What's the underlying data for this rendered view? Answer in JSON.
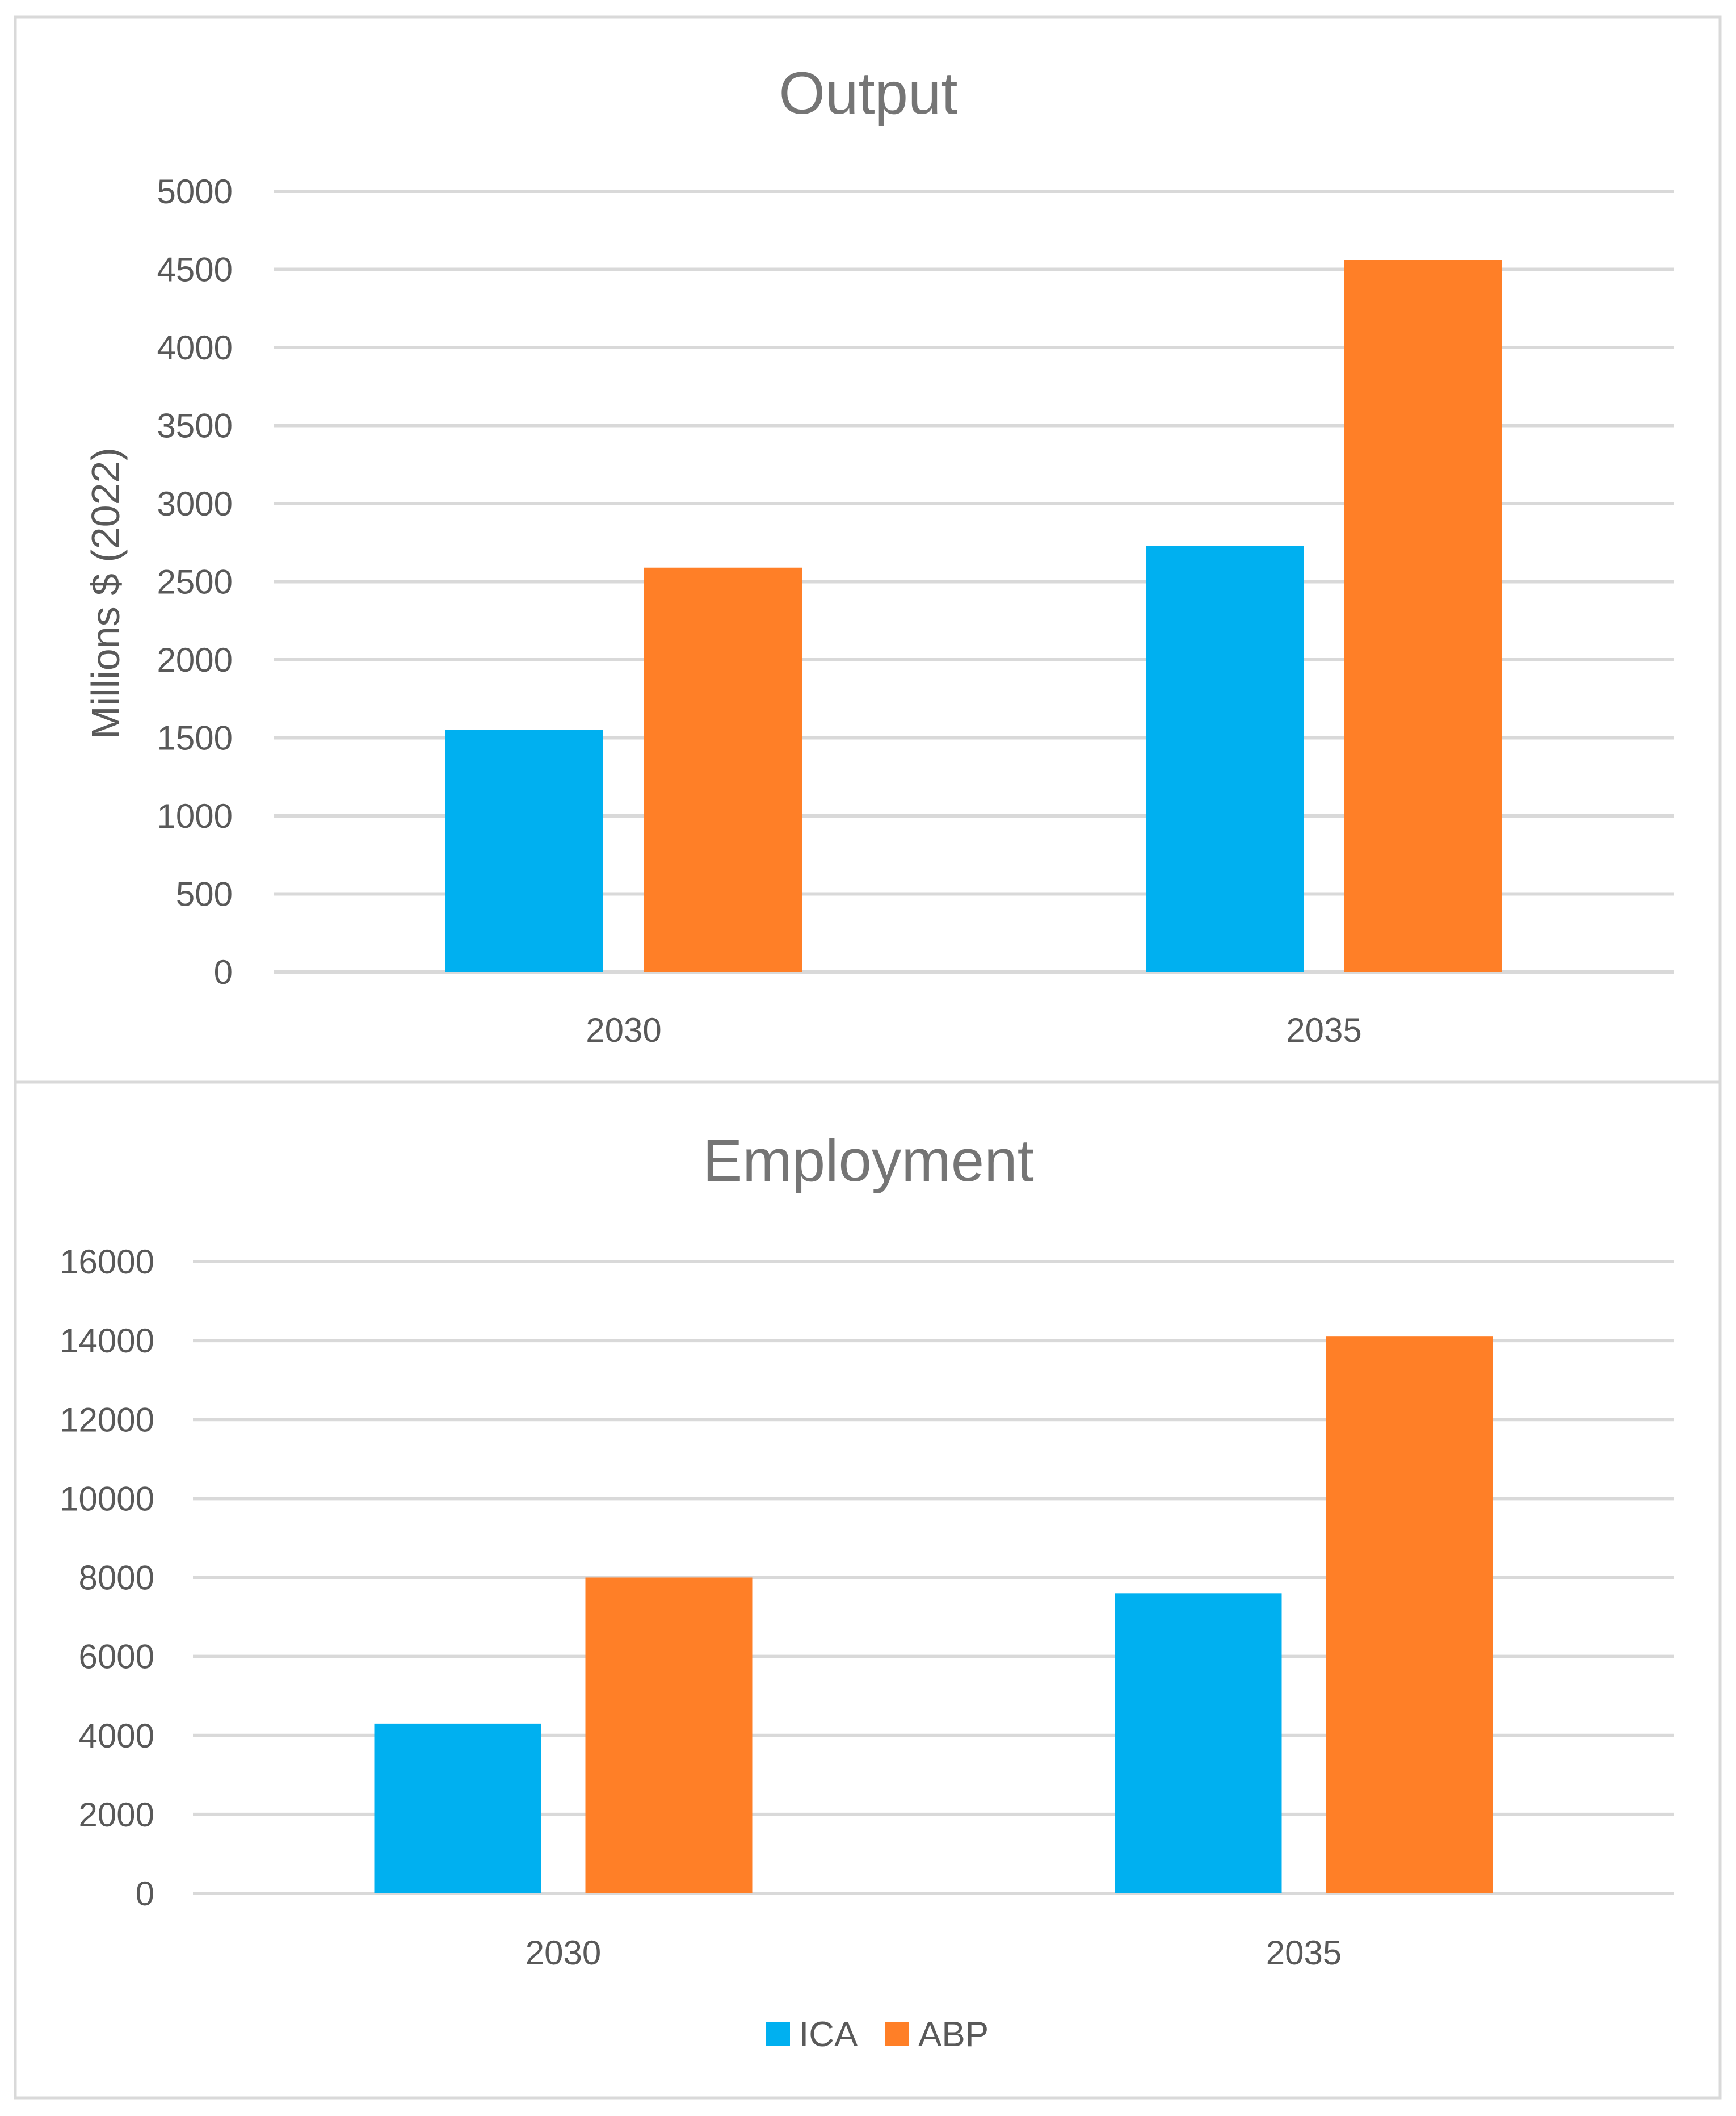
{
  "chart_data": [
    {
      "type": "bar",
      "title": "Output",
      "ylabel": "Millions $ (2022)",
      "xlabel": "",
      "categories": [
        "2030",
        "2035"
      ],
      "series": [
        {
          "name": "ICA",
          "color": "#00b0f0",
          "values": [
            1550,
            2730
          ]
        },
        {
          "name": "ABP",
          "color": "#ff7f27",
          "values": [
            2590,
            4560
          ]
        }
      ],
      "ylim": [
        0,
        5000
      ],
      "yticks": [
        "0",
        "500",
        "1000",
        "1500",
        "2000",
        "2500",
        "3000",
        "3500",
        "4000",
        "4500",
        "5000"
      ],
      "grid": true,
      "legend": "none"
    },
    {
      "type": "bar",
      "title": "Employment",
      "ylabel": "",
      "xlabel": "",
      "categories": [
        "2030",
        "2035"
      ],
      "series": [
        {
          "name": "ICA",
          "color": "#00b0f0",
          "values": [
            4300,
            7600
          ]
        },
        {
          "name": "ABP",
          "color": "#ff7f27",
          "values": [
            8000,
            14100
          ]
        }
      ],
      "ylim": [
        0,
        16000
      ],
      "yticks": [
        "0",
        "2000",
        "4000",
        "6000",
        "8000",
        "10000",
        "12000",
        "14000",
        "16000"
      ],
      "grid": true,
      "legend": "bottom"
    }
  ],
  "legend": {
    "items": [
      {
        "name": "ICA",
        "color": "#00b0f0"
      },
      {
        "name": "ABP",
        "color": "#ff7f27"
      }
    ]
  }
}
